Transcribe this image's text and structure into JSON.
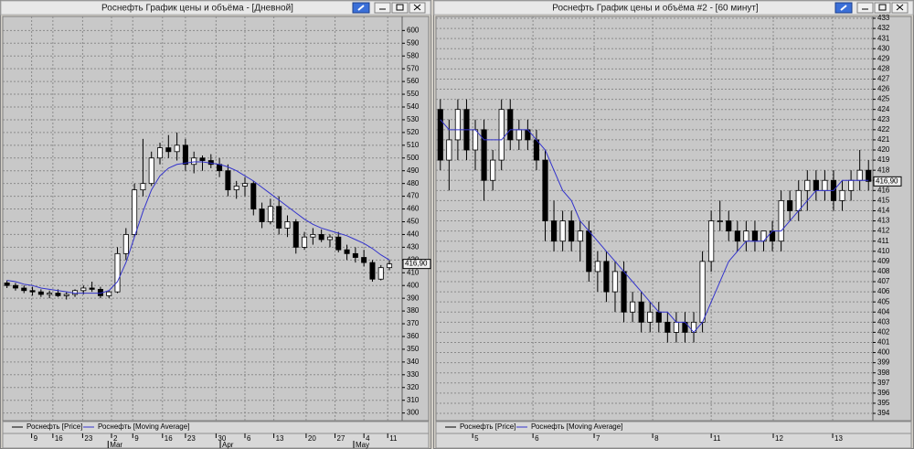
{
  "windows": [
    {
      "title": "Роснефть График цены и объёма - [Дневной]",
      "chart_data": {
        "type": "candlestick",
        "series": [
          {
            "name": "Роснефть [Price]",
            "type": "candlestick",
            "color": "#000000",
            "ohlc": [
              [
                402,
                404,
                398,
                400
              ],
              [
                400,
                402,
                396,
                398
              ],
              [
                398,
                400,
                394,
                396
              ],
              [
                396,
                399,
                392,
                395
              ],
              [
                395,
                397,
                391,
                393
              ],
              [
                393,
                396,
                390,
                394
              ],
              [
                394,
                397,
                391,
                392
              ],
              [
                392,
                395,
                389,
                393
              ],
              [
                393,
                397,
                391,
                396
              ],
              [
                396,
                400,
                393,
                398
              ],
              [
                398,
                403,
                395,
                397
              ],
              [
                397,
                399,
                390,
                392
              ],
              [
                392,
                396,
                390,
                395
              ],
              [
                395,
                430,
                394,
                425
              ],
              [
                425,
                445,
                420,
                440
              ],
              [
                440,
                480,
                438,
                475
              ],
              [
                475,
                515,
                470,
                480
              ],
              [
                480,
                505,
                478,
                500
              ],
              [
                500,
                512,
                495,
                508
              ],
              [
                508,
                518,
                500,
                505
              ],
              [
                505,
                520,
                498,
                510
              ],
              [
                510,
                515,
                490,
                495
              ],
              [
                495,
                505,
                488,
                500
              ],
              [
                500,
                502,
                490,
                498
              ],
              [
                498,
                503,
                492,
                495
              ],
              [
                495,
                500,
                485,
                490
              ],
              [
                490,
                495,
                470,
                475
              ],
              [
                475,
                482,
                468,
                478
              ],
              [
                478,
                485,
                470,
                480
              ],
              [
                480,
                482,
                455,
                460
              ],
              [
                460,
                465,
                445,
                450
              ],
              [
                450,
                468,
                448,
                462
              ],
              [
                462,
                470,
                440,
                445
              ],
              [
                445,
                455,
                438,
                450
              ],
              [
                450,
                452,
                425,
                430
              ],
              [
                430,
                442,
                428,
                438
              ],
              [
                438,
                445,
                432,
                440
              ],
              [
                440,
                444,
                434,
                436
              ],
              [
                436,
                440,
                430,
                438
              ],
              [
                438,
                442,
                426,
                428
              ],
              [
                428,
                432,
                420,
                425
              ],
              [
                425,
                430,
                418,
                422
              ],
              [
                422,
                428,
                415,
                418
              ],
              [
                418,
                420,
                403,
                405
              ],
              [
                405,
                416,
                404,
                414
              ],
              [
                414,
                420,
                412,
                416.9
              ]
            ]
          },
          {
            "name": "Роснефть [Moving Average]",
            "type": "line",
            "color": "#3333cc",
            "values": [
              404,
              403,
              401,
              400,
              398,
              397,
              396,
              395,
              394,
              394,
              394,
              394,
              396,
              403,
              418,
              438,
              458,
              475,
              486,
              492,
              495,
              496,
              497,
              497,
              496,
              495,
              493,
              490,
              486,
              482,
              477,
              472,
              467,
              462,
              457,
              452,
              448,
              445,
              443,
              441,
              439,
              436,
              433,
              429,
              424,
              420
            ]
          }
        ],
        "xlim": [
          0,
          47
        ],
        "xticks": [
          {
            "value": 3.4,
            "label": "9"
          },
          {
            "value": 5.9,
            "label": "16"
          },
          {
            "value": 9.4,
            "label": "23"
          },
          {
            "value": 12.8,
            "label": "2"
          },
          {
            "value": 15.3,
            "label": "9"
          },
          {
            "value": 18.8,
            "label": "16"
          },
          {
            "value": 21.5,
            "label": "23"
          },
          {
            "value": 25.1,
            "label": "30"
          },
          {
            "value": 28.5,
            "label": "6"
          },
          {
            "value": 31.9,
            "label": "13"
          },
          {
            "value": 35.7,
            "label": "20"
          },
          {
            "value": 39.1,
            "label": "27"
          },
          {
            "value": 42.5,
            "label": "4"
          },
          {
            "value": 45.3,
            "label": "11"
          }
        ],
        "month_ticks": [
          {
            "value": 12.4,
            "label": "Mar"
          },
          {
            "value": 25.6,
            "label": "Apr"
          },
          {
            "value": 41.3,
            "label": "May"
          }
        ],
        "ylim": [
          294,
          611
        ],
        "yticks": [
          300,
          310,
          320,
          330,
          340,
          350,
          360,
          370,
          380,
          390,
          400,
          410,
          420,
          430,
          440,
          450,
          460,
          470,
          480,
          490,
          500,
          510,
          520,
          530,
          540,
          550,
          560,
          570,
          580,
          590,
          600
        ],
        "last_price": {
          "value": 416.9,
          "label": "416,90"
        },
        "grid": true
      }
    },
    {
      "title": "Роснефть График цены и объёма #2 - [60 минут]",
      "chart_data": {
        "type": "candlestick",
        "series": [
          {
            "name": "Роснефть [Price]",
            "type": "candlestick",
            "color": "#000000",
            "ohlc": [
              [
                424,
                425,
                418,
                419
              ],
              [
                419,
                423,
                416,
                421
              ],
              [
                421,
                425,
                419,
                424
              ],
              [
                424,
                425,
                419,
                420
              ],
              [
                420,
                423,
                418,
                422
              ],
              [
                422,
                423,
                415,
                417
              ],
              [
                417,
                420,
                416,
                419
              ],
              [
                419,
                425,
                418,
                424
              ],
              [
                424,
                425,
                420,
                421
              ],
              [
                421,
                423,
                420,
                422
              ],
              [
                422,
                423,
                420,
                421
              ],
              [
                421,
                422,
                418,
                419
              ],
              [
                419,
                420,
                411,
                413
              ],
              [
                413,
                415,
                410,
                411
              ],
              [
                411,
                414,
                410,
                413
              ],
              [
                413,
                414,
                410,
                411
              ],
              [
                411,
                413,
                409,
                412
              ],
              [
                412,
                413,
                407,
                408
              ],
              [
                408,
                410,
                406,
                409
              ],
              [
                409,
                410,
                405,
                406
              ],
              [
                406,
                409,
                404,
                408
              ],
              [
                408,
                409,
                403,
                404
              ],
              [
                404,
                406,
                403,
                405
              ],
              [
                405,
                406,
                402,
                403
              ],
              [
                403,
                405,
                402,
                404
              ],
              [
                404,
                405,
                402,
                403
              ],
              [
                403,
                404,
                401,
                402
              ],
              [
                402,
                404,
                401,
                403
              ],
              [
                403,
                404,
                401,
                402
              ],
              [
                402,
                404,
                401,
                403
              ],
              [
                403,
                410,
                402,
                409
              ],
              [
                409,
                414,
                408,
                413
              ],
              [
                413,
                415,
                412,
                413
              ],
              [
                413,
                414,
                411,
                412
              ],
              [
                412,
                413,
                410,
                411
              ],
              [
                411,
                413,
                410,
                412
              ],
              [
                412,
                413,
                410,
                411
              ],
              [
                411,
                412,
                410,
                412
              ],
              [
                412,
                413,
                410,
                411
              ],
              [
                411,
                416,
                410,
                415
              ],
              [
                415,
                416,
                413,
                414
              ],
              [
                414,
                417,
                413,
                416
              ],
              [
                416,
                418,
                414,
                417
              ],
              [
                417,
                418,
                415,
                416
              ],
              [
                416,
                418,
                415,
                417
              ],
              [
                417,
                418,
                414,
                415
              ],
              [
                415,
                417,
                414,
                416
              ],
              [
                416,
                418,
                415,
                417
              ],
              [
                417,
                420,
                416,
                418
              ],
              [
                418,
                419,
                416,
                416.9
              ]
            ]
          },
          {
            "name": "Роснефть [Moving Average]",
            "type": "line",
            "color": "#3333cc",
            "values": [
              423,
              422,
              422,
              422,
              422,
              421,
              421,
              421,
              422,
              422,
              422,
              421,
              420,
              418,
              416,
              415,
              413,
              412,
              411,
              410,
              409,
              408,
              407,
              406,
              405,
              404,
              404,
              403,
              403,
              402,
              403,
              405,
              407,
              409,
              410,
              411,
              411,
              411,
              412,
              412,
              413,
              414,
              415,
              416,
              416,
              416,
              417,
              417,
              417,
              417
            ]
          }
        ],
        "xlim": [
          0,
          50
        ],
        "xticks": [
          {
            "value": 4.2,
            "label": "5"
          },
          {
            "value": 11.1,
            "label": "6"
          },
          {
            "value": 18.1,
            "label": "7"
          },
          {
            "value": 24.8,
            "label": "8"
          },
          {
            "value": 31.5,
            "label": "11"
          },
          {
            "value": 38.6,
            "label": "12"
          },
          {
            "value": 45.4,
            "label": "13"
          }
        ],
        "ylim": [
          393.28,
          433.18
        ],
        "yticks": [
          394,
          395,
          396,
          397,
          398,
          399,
          400,
          401,
          402,
          403,
          404,
          405,
          406,
          407,
          408,
          409,
          410,
          411,
          412,
          413,
          414,
          415,
          416,
          417,
          418,
          419,
          420,
          421,
          422,
          423,
          424,
          425,
          426,
          427,
          428,
          429,
          430,
          431,
          432,
          433
        ],
        "last_price": {
          "value": 416.9,
          "label": "416,90"
        },
        "grid": true
      }
    }
  ]
}
